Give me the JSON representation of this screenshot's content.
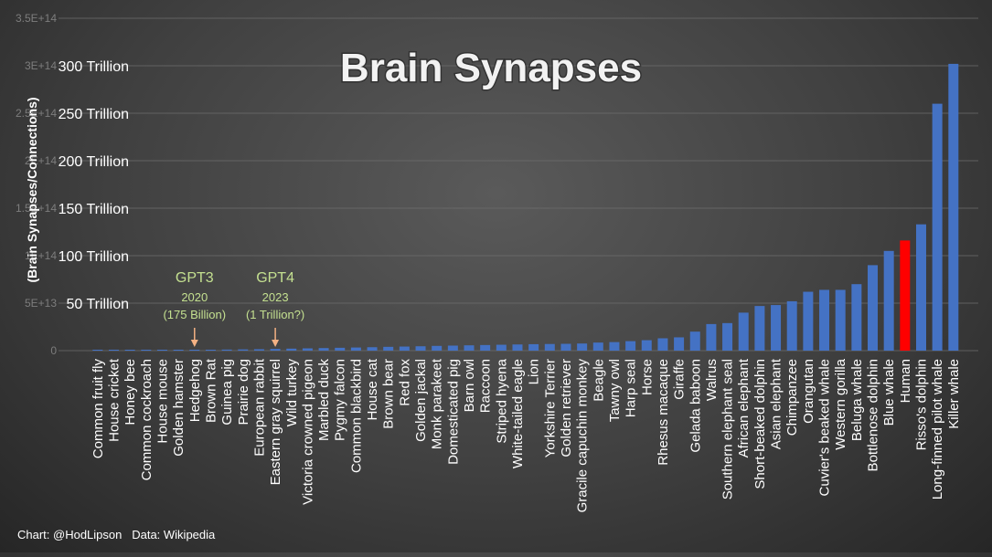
{
  "chart_data": {
    "type": "bar",
    "title": "Brain Synapses",
    "ylabel": "(Brain Synapses/Connections)",
    "xlabel": "",
    "ylim": [
      0,
      350000000000000
    ],
    "y_ticks_faint": [
      "0",
      "5E+13",
      "1E+14",
      "1.5E+14",
      "2E+14",
      "2.5E+14",
      "3E+14",
      "3.5E+14"
    ],
    "y_ticks_trillion": [
      "50 Trillion",
      "100 Trillion",
      "150 Trillion",
      "200 Trillion",
      "250 Trillion",
      "300 Trillion"
    ],
    "grid": true,
    "legend": "none",
    "colors": {
      "bar": "#4472c4",
      "highlight": "#ff0000",
      "annotation": "#c4e090",
      "arrow": "#f4b183"
    },
    "highlight_category": "Human",
    "categories": [
      "Common fruit fly",
      "House cricket",
      "Honey bee",
      "Common cockroach",
      "House mouse",
      "Golden hamster",
      "Hedgehog",
      "Brown Rat",
      "Guinea pig",
      "Prairie dog",
      "European rabbit",
      "Eastern gray squirrel",
      "Wild turkey",
      "Victoria crowned pigeon",
      "Marbled duck",
      "Pygmy falcon",
      "Common blackbird",
      "House cat",
      "Brown bear",
      "Red fox",
      "Golden jackal",
      "Monk parakeet",
      "Domesticated pig",
      "Barn owl",
      "Raccoon",
      "Striped hyena",
      "White-tailed eagle",
      "Lion",
      "Yorkshire Terrier",
      "Golden retriever",
      "Gracile capuchin monkey",
      "Beagle",
      "Tawny owl",
      "Harp seal",
      "Horse",
      "Rhesus macaque",
      "Giraffe",
      "Gelada baboon",
      "Walrus",
      "Southern elephant seal",
      "African elephant",
      "Short-beaked dolphin",
      "Asian elephant",
      "Chimpanzee",
      "Orangutan",
      "Cuvier's beaked whale",
      "Western gorilla",
      "Beluga whale",
      "Bottlenose dolphin",
      "Blue whale",
      "Human",
      "Risso's dolphin",
      "Long-finned pilot whale",
      "Killer whale"
    ],
    "values": [
      100000000.0,
      1000000000.0,
      10000000000.0,
      100000000000.0,
      300000000000.0,
      500000000000.0,
      700000000000.0,
      900000000000.0,
      1100000000000.0,
      1300000000000.0,
      1500000000000.0,
      1800000000000.0,
      2100000000000.0,
      2400000000000.0,
      2700000000000.0,
      3000000000000.0,
      3300000000000.0,
      3600000000000.0,
      4000000000000.0,
      4300000000000.0,
      4600000000000.0,
      5000000000000.0,
      5300000000000.0,
      5600000000000.0,
      5900000000000.0,
      6200000000000.0,
      6500000000000.0,
      6800000000000.0,
      7000000000000.0,
      7200000000000.0,
      7500000000000.0,
      8500000000000.0,
      9000000000000.0,
      10000000000000.0,
      11000000000000.0,
      13000000000000.0,
      14000000000000.0,
      20000000000000.0,
      28000000000000.0,
      29000000000000.0,
      40000000000000.0,
      47000000000000.0,
      48000000000000.0,
      52000000000000.0,
      62000000000000.0,
      64000000000000.0,
      64000000000000.0,
      70000000000000.0,
      90000000000000.0,
      105000000000000.0,
      116000000000000.0,
      133000000000000.0,
      260000000000000.0,
      302000000000000.0
    ],
    "annotations": [
      {
        "label": "GPT3",
        "year": "2020",
        "note": "(175 Billion)",
        "category": "Hedgehog"
      },
      {
        "label": "GPT4",
        "year": "2023",
        "note": "(1 Trillion?)",
        "category": "Eastern gray squirrel"
      }
    ]
  },
  "credit": {
    "chart": "Chart: @HodLipson",
    "data": "Data: Wikipedia"
  }
}
